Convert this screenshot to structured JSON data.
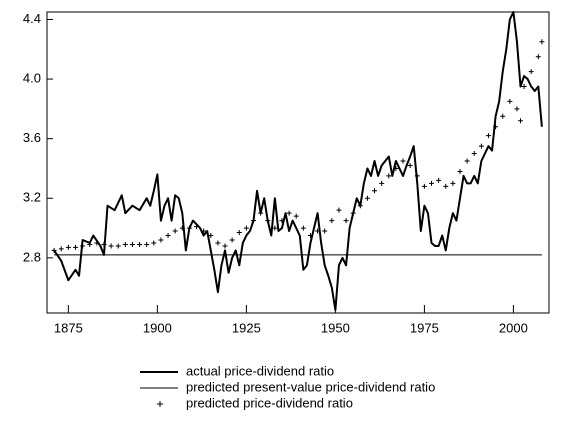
{
  "chart_data": {
    "type": "line",
    "xlim": [
      1869,
      2010
    ],
    "xticks": [
      1875,
      1900,
      1925,
      1950,
      1975,
      2000
    ],
    "ylim": [
      2.43,
      4.45
    ],
    "yticks": [
      2.8,
      3.2,
      3.6,
      {
        "value": 4.0,
        "label": "4.0"
      },
      4.4
    ],
    "series": [
      {
        "name": "actual price-dividend ratio",
        "color": "#000000",
        "style": "line",
        "line_width": 2,
        "x": [
          1871,
          1873,
          1875,
          1877,
          1878,
          1879,
          1881,
          1882,
          1884,
          1885,
          1886,
          1888,
          1890,
          1891,
          1893,
          1895,
          1897,
          1898,
          1899,
          1900,
          1901,
          1902,
          1903,
          1904,
          1905,
          1906,
          1907,
          1908,
          1909,
          1910,
          1912,
          1913,
          1914,
          1915,
          1916,
          1917,
          1918,
          1919,
          1920,
          1921,
          1922,
          1923,
          1924,
          1925,
          1926,
          1927,
          1928,
          1929,
          1930,
          1931,
          1932,
          1933,
          1934,
          1935,
          1936,
          1937,
          1938,
          1939,
          1940,
          1941,
          1942,
          1943,
          1944,
          1945,
          1946,
          1947,
          1948,
          1949,
          1950,
          1951,
          1952,
          1953,
          1954,
          1955,
          1956,
          1957,
          1958,
          1959,
          1960,
          1961,
          1962,
          1963,
          1964,
          1965,
          1966,
          1967,
          1968,
          1969,
          1970,
          1971,
          1972,
          1973,
          1974,
          1975,
          1976,
          1977,
          1978,
          1979,
          1980,
          1981,
          1982,
          1983,
          1984,
          1985,
          1986,
          1987,
          1988,
          1989,
          1990,
          1991,
          1992,
          1993,
          1994,
          1995,
          1996,
          1997,
          1998,
          1999,
          2000,
          2001,
          2002,
          2003,
          2004,
          2005,
          2006,
          2007,
          2008
        ],
        "values": [
          2.85,
          2.78,
          2.65,
          2.72,
          2.68,
          2.92,
          2.9,
          2.95,
          2.88,
          2.82,
          3.15,
          3.12,
          3.22,
          3.1,
          3.15,
          3.12,
          3.2,
          3.15,
          3.25,
          3.36,
          3.05,
          3.15,
          3.2,
          3.05,
          3.22,
          3.2,
          3.1,
          2.85,
          3.0,
          3.05,
          3.0,
          2.95,
          2.98,
          2.85,
          2.72,
          2.57,
          2.75,
          2.85,
          2.7,
          2.8,
          2.85,
          2.75,
          2.9,
          2.95,
          2.98,
          3.05,
          3.25,
          3.1,
          3.2,
          3.05,
          2.95,
          3.2,
          2.98,
          3.0,
          3.1,
          2.98,
          3.05,
          3.0,
          2.95,
          2.72,
          2.75,
          2.9,
          3.0,
          3.1,
          2.9,
          2.75,
          2.68,
          2.6,
          2.45,
          2.75,
          2.8,
          2.75,
          3.0,
          3.1,
          3.2,
          3.15,
          3.3,
          3.4,
          3.35,
          3.45,
          3.35,
          3.42,
          3.45,
          3.48,
          3.35,
          3.45,
          3.4,
          3.35,
          3.42,
          3.48,
          3.55,
          3.3,
          2.98,
          3.15,
          3.1,
          2.9,
          2.88,
          2.88,
          2.95,
          2.85,
          3.0,
          3.1,
          3.05,
          3.2,
          3.35,
          3.3,
          3.3,
          3.35,
          3.3,
          3.45,
          3.5,
          3.55,
          3.52,
          3.75,
          3.85,
          4.05,
          4.2,
          4.4,
          4.45,
          4.25,
          3.95,
          4.02,
          4.0,
          3.95,
          3.92,
          3.95,
          3.68
        ]
      },
      {
        "name": "predicted present-value price-dividend ratio",
        "color": "#000000",
        "style": "line",
        "line_width": 1,
        "x": [
          1871,
          2008
        ],
        "values": [
          2.82,
          2.82
        ]
      },
      {
        "name": "predicted price-dividend ratio",
        "color": "#000000",
        "style": "markers",
        "x": [
          1871,
          1873,
          1875,
          1877,
          1879,
          1881,
          1883,
          1885,
          1887,
          1889,
          1891,
          1893,
          1895,
          1897,
          1899,
          1901,
          1903,
          1905,
          1907,
          1909,
          1911,
          1913,
          1915,
          1917,
          1919,
          1921,
          1923,
          1925,
          1927,
          1929,
          1931,
          1933,
          1935,
          1937,
          1939,
          1941,
          1943,
          1945,
          1947,
          1949,
          1951,
          1953,
          1955,
          1957,
          1959,
          1961,
          1963,
          1965,
          1967,
          1969,
          1971,
          1973,
          1975,
          1977,
          1979,
          1981,
          1983,
          1985,
          1987,
          1989,
          1991,
          1993,
          1995,
          1997,
          1999,
          2001,
          2002,
          2003,
          2005,
          2007,
          2008
        ],
        "values": [
          2.85,
          2.86,
          2.87,
          2.87,
          2.88,
          2.89,
          2.9,
          2.89,
          2.88,
          2.88,
          2.89,
          2.89,
          2.89,
          2.89,
          2.9,
          2.92,
          2.95,
          2.98,
          3.0,
          3.0,
          3.01,
          2.98,
          2.95,
          2.9,
          2.88,
          2.92,
          2.97,
          3.0,
          3.05,
          3.1,
          3.05,
          3.0,
          3.05,
          3.1,
          3.08,
          3.0,
          2.95,
          2.98,
          2.98,
          3.05,
          3.12,
          3.05,
          3.1,
          3.15,
          3.2,
          3.25,
          3.3,
          3.35,
          3.4,
          3.45,
          3.42,
          3.35,
          3.28,
          3.3,
          3.32,
          3.28,
          3.3,
          3.38,
          3.45,
          3.5,
          3.55,
          3.62,
          3.68,
          3.75,
          3.85,
          3.8,
          3.72,
          3.95,
          4.05,
          4.15,
          4.25
        ]
      }
    ]
  }
}
